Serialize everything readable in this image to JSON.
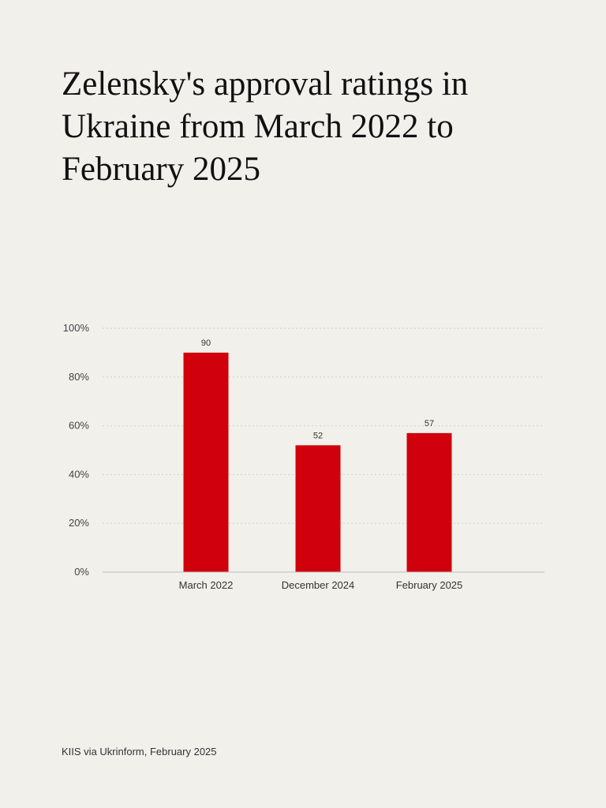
{
  "title": "Zelensky's approval ratings in Ukraine from March 2022 to February 2025",
  "source": "KIIS via Ukrinform, February 2025",
  "colors": {
    "background": "#f2f0eb",
    "bar": "#d0000c",
    "grid": "#cfcfcf",
    "axis": "#bdbdbd"
  },
  "chart_data": {
    "type": "bar",
    "categories": [
      "March 2022",
      "December 2024",
      "February 2025"
    ],
    "values": [
      90,
      52,
      57
    ],
    "data_labels": [
      "90",
      "52",
      "57"
    ],
    "y_ticks": [
      0,
      20,
      40,
      60,
      80,
      100
    ],
    "y_tick_labels": [
      "0%",
      "20%",
      "40%",
      "60%",
      "80%",
      "100%"
    ],
    "ylim": [
      0,
      100
    ],
    "grid": true,
    "grid_style": "dotted",
    "legend": false
  }
}
